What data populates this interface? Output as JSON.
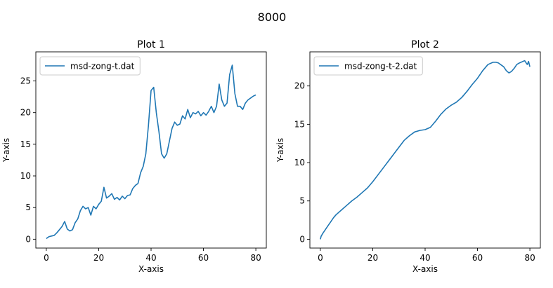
{
  "figure": {
    "suptitle": "8000"
  },
  "chart_data": [
    {
      "type": "line",
      "title": "Plot 1",
      "xlabel": "X-axis",
      "ylabel": "Y-axis",
      "xlim": [
        -4,
        84
      ],
      "ylim": [
        -1.4,
        29.6
      ],
      "xticks": [
        0,
        20,
        40,
        60,
        80
      ],
      "yticks": [
        0,
        5,
        10,
        15,
        20,
        25
      ],
      "grid": false,
      "legend": "upper-left",
      "color": "#1f77b4",
      "series": [
        {
          "name": "msd-zong-t.dat",
          "x": [
            0,
            1,
            2,
            3,
            4,
            5,
            6,
            7,
            8,
            9,
            10,
            11,
            12,
            13,
            14,
            15,
            16,
            17,
            18,
            19,
            20,
            21,
            22,
            23,
            24,
            25,
            26,
            27,
            28,
            29,
            30,
            31,
            32,
            33,
            34,
            35,
            36,
            37,
            38,
            39,
            40,
            41,
            42,
            43,
            44,
            45,
            46,
            47,
            48,
            49,
            50,
            51,
            52,
            53,
            54,
            55,
            56,
            57,
            58,
            59,
            60,
            61,
            62,
            63,
            64,
            65,
            66,
            67,
            68,
            69,
            70,
            71,
            72,
            73,
            74,
            75,
            76,
            77,
            78,
            79,
            80
          ],
          "y": [
            0.1,
            0.4,
            0.5,
            0.6,
            1.0,
            1.5,
            2.0,
            2.8,
            1.6,
            1.3,
            1.5,
            2.6,
            3.2,
            4.5,
            5.2,
            4.8,
            5.0,
            3.8,
            5.2,
            4.8,
            5.5,
            6.0,
            8.2,
            6.5,
            6.8,
            7.2,
            6.3,
            6.6,
            6.2,
            6.8,
            6.4,
            6.9,
            7.0,
            8.0,
            8.5,
            8.8,
            10.5,
            11.5,
            13.5,
            18.0,
            23.5,
            24.0,
            20.0,
            17.0,
            13.5,
            12.8,
            13.5,
            15.5,
            17.5,
            18.5,
            18.0,
            18.2,
            19.5,
            19.0,
            20.5,
            19.2,
            20.0,
            19.8,
            20.2,
            19.5,
            20.0,
            19.6,
            20.2,
            21.0,
            20.0,
            21.0,
            24.5,
            22.0,
            21.0,
            21.5,
            26.0,
            27.5,
            23.0,
            21.0,
            21.0,
            20.5,
            21.5,
            22.0,
            22.3,
            22.6,
            22.8
          ]
        }
      ]
    },
    {
      "type": "line",
      "title": "Plot 2",
      "xlabel": "X-axis",
      "ylabel": "Y-axis",
      "xlim": [
        -4,
        84
      ],
      "ylim": [
        -1.15,
        24.45
      ],
      "xticks": [
        0,
        20,
        40,
        60,
        80
      ],
      "yticks": [
        0,
        5,
        10,
        15,
        20
      ],
      "grid": false,
      "legend": "upper-left",
      "color": "#1f77b4",
      "series": [
        {
          "name": "msd-zong-t-2.dat",
          "x": [
            0,
            0.3,
            1,
            2,
            3,
            4,
            5,
            6,
            8,
            10,
            12,
            14,
            16,
            18,
            20,
            22,
            24,
            26,
            28,
            30,
            32,
            34,
            36,
            38,
            40,
            42,
            44,
            46,
            48,
            50,
            52,
            54,
            56,
            58,
            60,
            62,
            64,
            66,
            67,
            68,
            70,
            71,
            72,
            73,
            74,
            75,
            76,
            78,
            79,
            79.5,
            80
          ],
          "y": [
            0,
            0.4,
            0.8,
            1.3,
            1.8,
            2.3,
            2.8,
            3.2,
            3.8,
            4.4,
            5.0,
            5.5,
            6.1,
            6.7,
            7.5,
            8.4,
            9.3,
            10.2,
            11.1,
            12.0,
            12.9,
            13.5,
            14.0,
            14.2,
            14.3,
            14.6,
            15.4,
            16.3,
            17.0,
            17.5,
            17.9,
            18.5,
            19.3,
            20.2,
            21.0,
            22.0,
            22.8,
            23.1,
            23.1,
            23.0,
            22.5,
            22.0,
            21.7,
            21.9,
            22.3,
            22.8,
            23.0,
            23.3,
            22.8,
            23.2,
            22.5
          ]
        }
      ]
    }
  ]
}
